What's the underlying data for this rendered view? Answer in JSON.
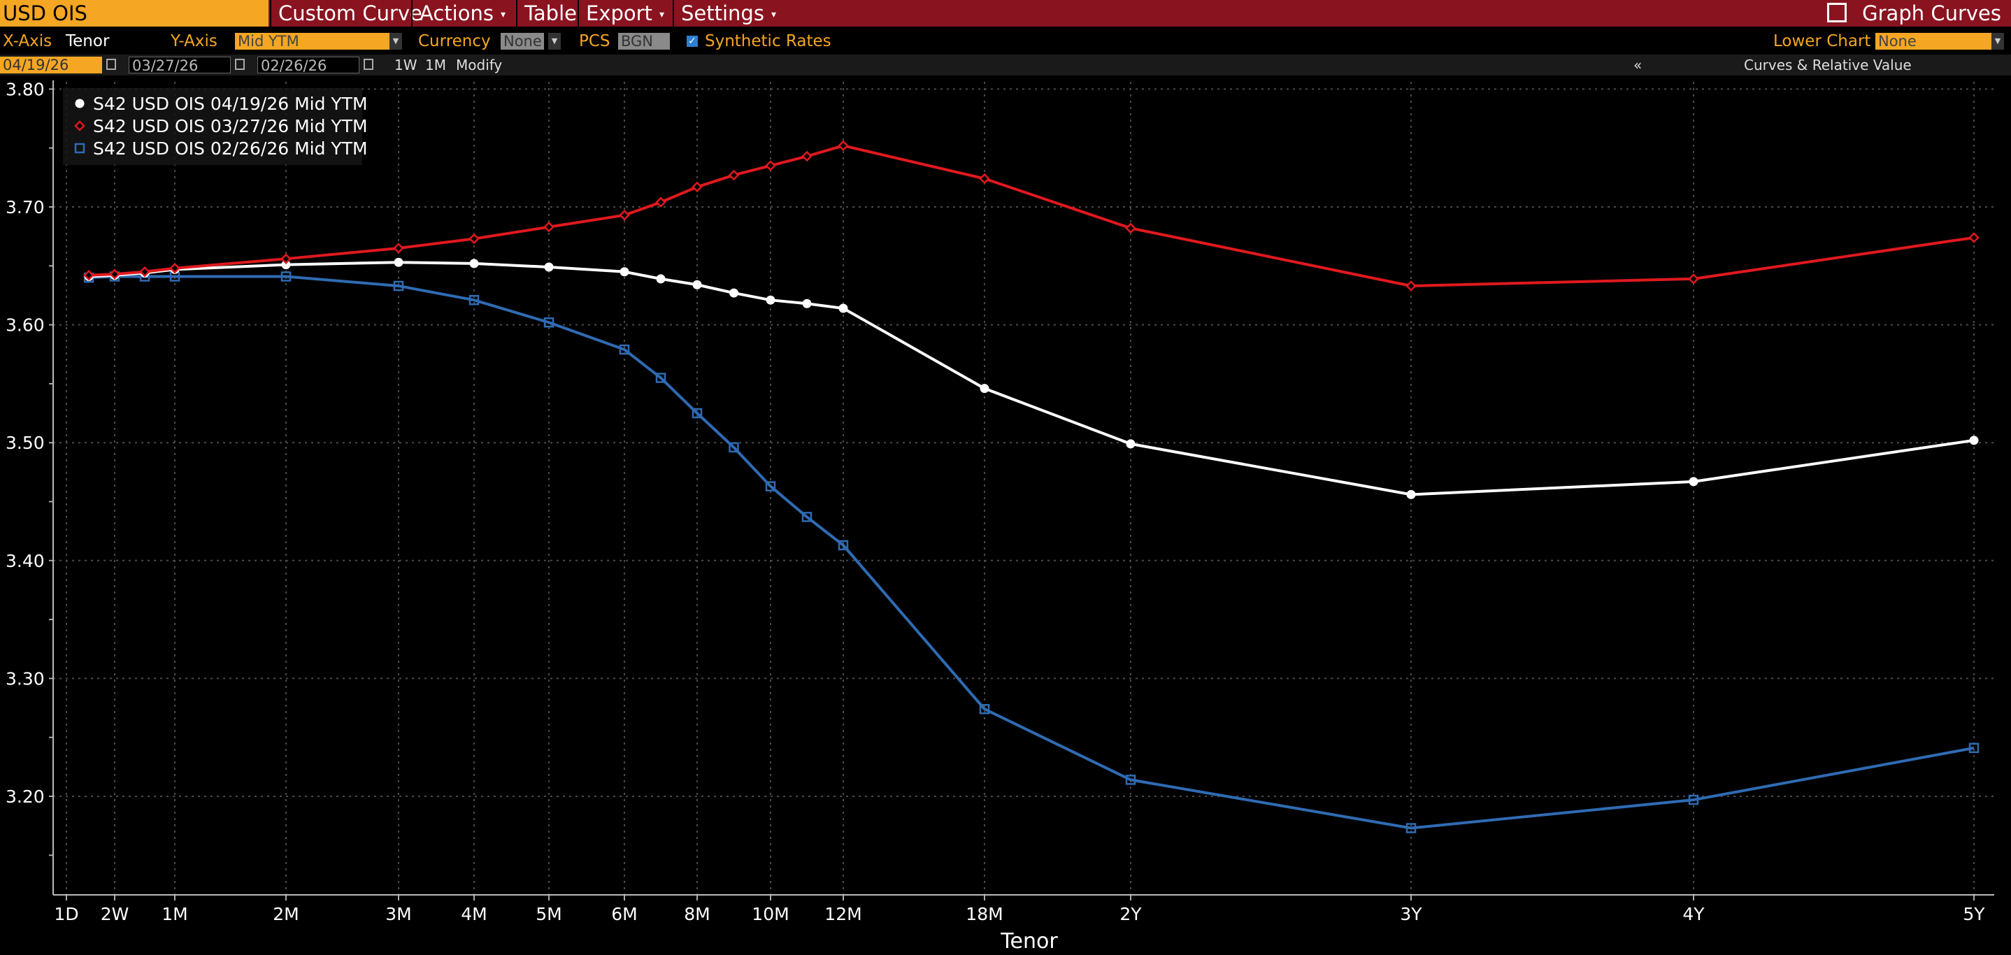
{
  "toolbar": {
    "ticker": "USD OIS",
    "menus": [
      "Custom Curve",
      "Actions",
      "Table",
      "Export",
      "Settings"
    ],
    "graph_curves": "Graph Curves"
  },
  "controls": {
    "xaxis_label": "X-Axis",
    "xaxis_value": "Tenor",
    "yaxis_label": "Y-Axis",
    "yaxis_value": "Mid YTM",
    "currency_label": "Currency",
    "currency_value": "None",
    "pcs_label": "PCS",
    "pcs_value": "BGN",
    "synthetic_label": "Synthetic Rates",
    "synthetic_checked": true,
    "lower_chart_label": "Lower Chart",
    "lower_chart_value": "None"
  },
  "dates_row": {
    "dates": [
      "04/19/26",
      "03/27/26",
      "02/26/26"
    ],
    "btn_1w": "1W",
    "btn_1m": "1M",
    "modify": "Modify",
    "collapse": "«",
    "panel_title": "Curves & Relative Value"
  },
  "chart_data": {
    "type": "line",
    "xlabel": "Tenor",
    "ylabel": "",
    "title": "",
    "ylim": [
      3.11,
      3.8
    ],
    "yticks": [
      "3.80",
      "3.70",
      "3.60",
      "3.50",
      "3.40",
      "3.30",
      "3.20"
    ],
    "yticks_values": [
      3.8,
      3.7,
      3.6,
      3.5,
      3.4,
      3.3,
      3.2
    ],
    "x_axis_labels": [
      "1D",
      "2W",
      "1M",
      "2M",
      "3M",
      "4M",
      "5M",
      "6M",
      "8M",
      "10M",
      "12M",
      "18M",
      "2Y",
      "3Y",
      "4Y",
      "5Y"
    ],
    "x_axis_label_months": [
      0.033,
      0.5,
      1,
      2,
      3,
      4,
      5,
      6,
      8,
      10,
      12,
      18,
      24,
      36,
      48,
      60
    ],
    "x_months": [
      0.25,
      0.5,
      0.75,
      1,
      2,
      3,
      4,
      5,
      6,
      7,
      8,
      9,
      10,
      11,
      12,
      18,
      24,
      36,
      48,
      60
    ],
    "grid": true,
    "legend_position": "top-left",
    "series": [
      {
        "name": "S42 USD OIS 04/19/26 Mid YTM",
        "color": "#ffffff",
        "marker": "circle",
        "values": [
          3.641,
          3.642,
          3.644,
          3.647,
          3.651,
          3.653,
          3.652,
          3.649,
          3.645,
          3.639,
          3.634,
          3.627,
          3.621,
          3.618,
          3.614,
          3.546,
          3.499,
          3.456,
          3.467,
          3.502
        ]
      },
      {
        "name": "S42 USD OIS 03/27/26 Mid YTM",
        "color": "#e0191e",
        "marker": "diamond",
        "values": [
          3.642,
          3.643,
          3.645,
          3.648,
          3.656,
          3.665,
          3.673,
          3.683,
          3.693,
          3.704,
          3.717,
          3.727,
          3.735,
          3.743,
          3.752,
          3.724,
          3.682,
          3.633,
          3.639,
          3.674
        ]
      },
      {
        "name": "S42 USD OIS 02/26/26 Mid YTM",
        "color": "#2f6bb3",
        "marker": "square",
        "values": [
          3.64,
          3.641,
          3.641,
          3.641,
          3.641,
          3.633,
          3.621,
          3.602,
          3.579,
          3.555,
          3.525,
          3.496,
          3.463,
          3.437,
          3.413,
          3.274,
          3.214,
          3.173,
          3.197,
          3.241
        ]
      }
    ]
  }
}
